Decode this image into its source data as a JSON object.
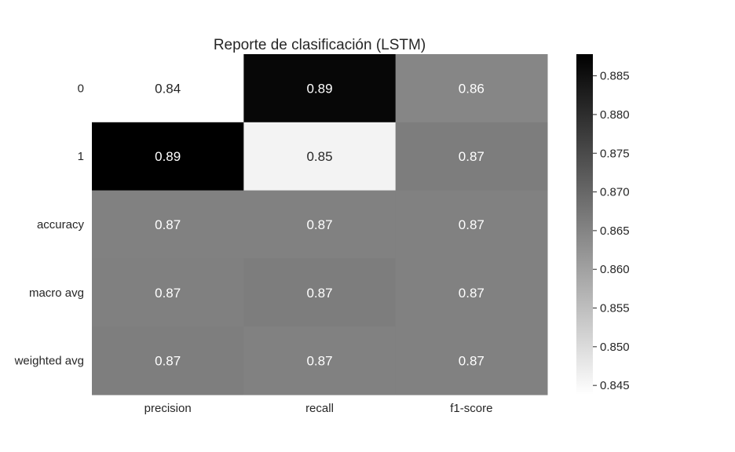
{
  "chart_data": {
    "type": "heatmap",
    "title": "Reporte de clasificación (LSTM)",
    "rows": [
      "0",
      "1",
      "accuracy",
      "macro avg",
      "weighted avg"
    ],
    "columns": [
      "precision",
      "recall",
      "f1-score"
    ],
    "values": [
      [
        0.8438,
        0.8866,
        0.8647
      ],
      [
        0.8878,
        0.8458,
        0.8663
      ],
      [
        0.8656,
        0.8656,
        0.8656
      ],
      [
        0.8658,
        0.8662,
        0.8655
      ],
      [
        0.866,
        0.8656,
        0.8655
      ]
    ],
    "annotations": [
      [
        "0.84",
        "0.89",
        "0.86"
      ],
      [
        "0.89",
        "0.85",
        "0.87"
      ],
      [
        "0.87",
        "0.87",
        "0.87"
      ],
      [
        "0.87",
        "0.87",
        "0.87"
      ],
      [
        "0.87",
        "0.87",
        "0.87"
      ]
    ],
    "colormap": "Greys",
    "colorbar": {
      "range": [
        0.8438,
        0.8878
      ],
      "ticks": [
        0.845,
        0.85,
        0.855,
        0.86,
        0.865,
        0.87,
        0.875,
        0.88,
        0.885
      ],
      "tick_labels": [
        "0.845",
        "0.850",
        "0.855",
        "0.860",
        "0.865",
        "0.870",
        "0.875",
        "0.880",
        "0.885"
      ]
    },
    "colors": {
      "low": "#ffffff",
      "high": "#000000",
      "text_dark": "#262626",
      "text_light": "#ffffff"
    }
  }
}
